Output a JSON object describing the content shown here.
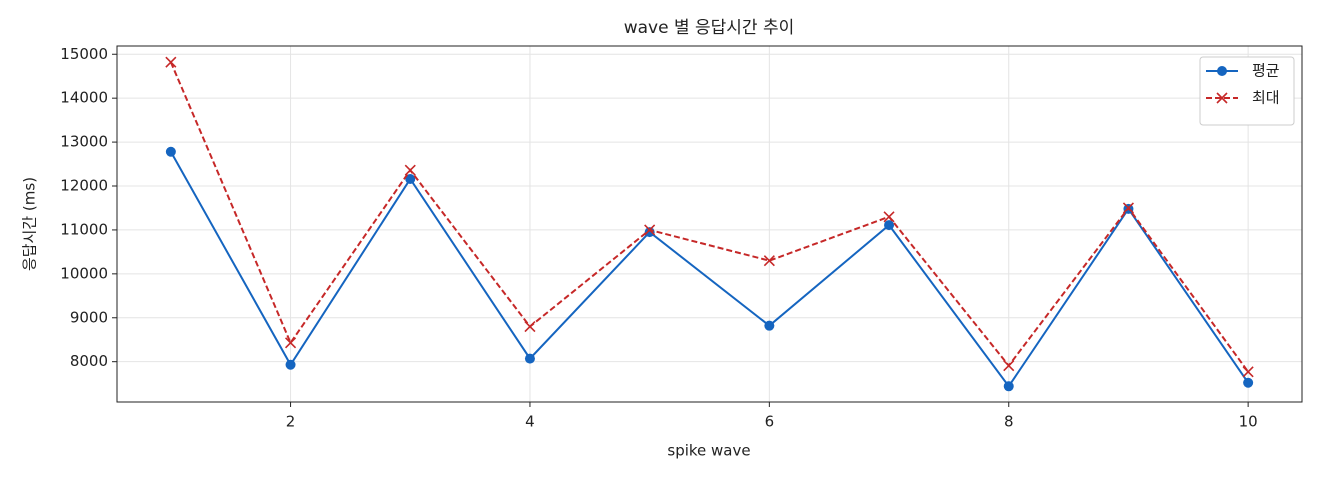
{
  "chart_data": {
    "type": "line",
    "title": "wave 별 응답시간 추이",
    "x_label": "spike wave",
    "y_label": "응답시간 (ms)",
    "x": [
      1,
      2,
      3,
      4,
      5,
      6,
      7,
      8,
      9,
      10
    ],
    "series": [
      {
        "name": "평균",
        "color": "#1565c0",
        "marker": "o",
        "linestyle": "solid",
        "values": [
          12780,
          7930,
          12160,
          8070,
          10950,
          8820,
          11110,
          7440,
          11480,
          7520
        ]
      },
      {
        "name": "최대",
        "color": "#c62828",
        "marker": "x",
        "linestyle": "dashed",
        "values": [
          14820,
          8430,
          12360,
          8800,
          11000,
          10300,
          11300,
          7910,
          11500,
          7770
        ]
      }
    ],
    "xlim": [
      0.55,
      10.45
    ],
    "ylim": [
      7082,
      15188
    ],
    "xticks": [
      2,
      4,
      6,
      8,
      10
    ],
    "yticks": [
      8000,
      9000,
      10000,
      11000,
      12000,
      13000,
      14000,
      15000
    ],
    "grid": true,
    "legend": "upper right"
  }
}
